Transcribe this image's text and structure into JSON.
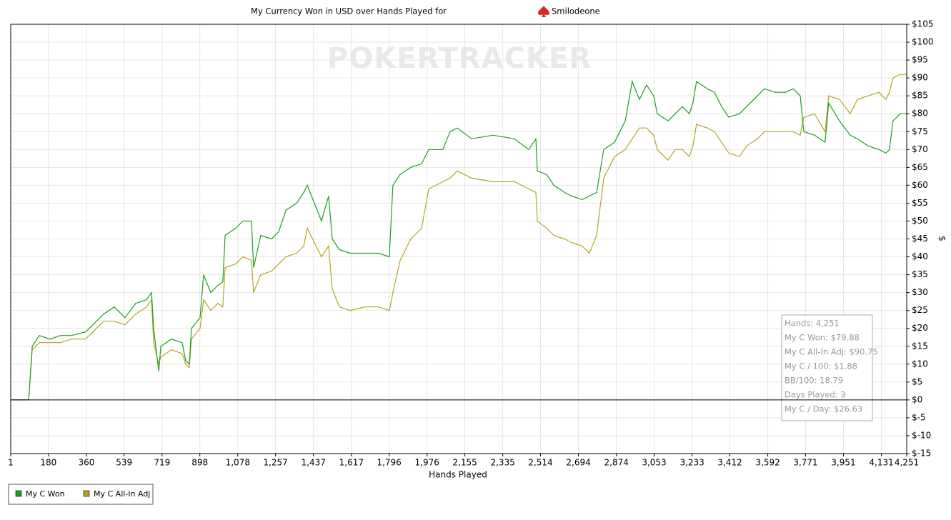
{
  "chart_data": {
    "type": "line",
    "title": "My Currency Won in USD over Hands Played for",
    "player": "Smilodeone",
    "watermark": "POKERTRACKER",
    "xlabel": "Hands Played",
    "ylabel": "$",
    "grid": true,
    "reference_line": 0,
    "xlim": [
      1,
      4251
    ],
    "ylim": [
      -15,
      105
    ],
    "xticks": [
      1,
      180,
      360,
      539,
      719,
      898,
      {
        "value": 1078,
        "label": "1,078"
      },
      {
        "value": 1257,
        "label": "1,257"
      },
      {
        "value": 1437,
        "label": "1,437"
      },
      {
        "value": 1617,
        "label": "1,617"
      },
      {
        "value": 1796,
        "label": "1,796"
      },
      {
        "value": 1976,
        "label": "1,976"
      },
      {
        "value": 2155,
        "label": "2,155"
      },
      {
        "value": 2335,
        "label": "2,335"
      },
      {
        "value": 2514,
        "label": "2,514"
      },
      {
        "value": 2694,
        "label": "2,694"
      },
      {
        "value": 2874,
        "label": "2,874"
      },
      {
        "value": 3053,
        "label": "3,053"
      },
      {
        "value": 3233,
        "label": "3,233"
      },
      {
        "value": 3412,
        "label": "3,412"
      },
      {
        "value": 3592,
        "label": "3,592"
      },
      {
        "value": 3771,
        "label": "3,771"
      },
      {
        "value": 3951,
        "label": "3,951"
      },
      {
        "value": 4131,
        "label": "4,131"
      },
      {
        "value": 4251,
        "label": "4,251"
      }
    ],
    "yticks": [
      {
        "value": -15,
        "label": "$-15"
      },
      {
        "value": -10,
        "label": "$-10"
      },
      {
        "value": -5,
        "label": "$-5"
      },
      {
        "value": 0,
        "label": "$0"
      },
      {
        "value": 5,
        "label": "$5"
      },
      {
        "value": 10,
        "label": "$10"
      },
      {
        "value": 15,
        "label": "$15"
      },
      {
        "value": 20,
        "label": "$20"
      },
      {
        "value": 25,
        "label": "$25"
      },
      {
        "value": 30,
        "label": "$30"
      },
      {
        "value": 35,
        "label": "$35"
      },
      {
        "value": 40,
        "label": "$40"
      },
      {
        "value": 45,
        "label": "$45"
      },
      {
        "value": 50,
        "label": "$50"
      },
      {
        "value": 55,
        "label": "$55"
      },
      {
        "value": 60,
        "label": "$60"
      },
      {
        "value": 65,
        "label": "$65"
      },
      {
        "value": 70,
        "label": "$70"
      },
      {
        "value": 75,
        "label": "$75"
      },
      {
        "value": 80,
        "label": "$80"
      },
      {
        "value": 85,
        "label": "$85"
      },
      {
        "value": 90,
        "label": "$90"
      },
      {
        "value": 95,
        "label": "$95"
      },
      {
        "value": 100,
        "label": "$100"
      },
      {
        "value": 105,
        "label": "$105"
      }
    ],
    "x": [
      1,
      86,
      103,
      137,
      187,
      238,
      289,
      357,
      408,
      442,
      492,
      543,
      594,
      645,
      669,
      679,
      703,
      713,
      764,
      814,
      831,
      848,
      858,
      899,
      916,
      950,
      984,
      1007,
      1018,
      1068,
      1102,
      1143,
      1153,
      1187,
      1238,
      1272,
      1306,
      1357,
      1391,
      1408,
      1441,
      1475,
      1509,
      1526,
      1560,
      1611,
      1679,
      1746,
      1797,
      1814,
      1848,
      1899,
      1950,
      1984,
      2018,
      2051,
      2085,
      2119,
      2187,
      2289,
      2390,
      2458,
      2492,
      2499,
      2543,
      2577,
      2628,
      2661,
      2712,
      2746,
      2780,
      2814,
      2865,
      2916,
      2949,
      2983,
      3017,
      3051,
      3068,
      3119,
      3153,
      3187,
      3220,
      3237,
      3254,
      3305,
      3339,
      3373,
      3407,
      3458,
      3492,
      3543,
      3576,
      3627,
      3678,
      3712,
      3746,
      3763,
      3814,
      3864,
      3881,
      3932,
      3983,
      4017,
      4068,
      4119,
      4152,
      4169,
      4186,
      4220,
      4251
    ],
    "series": [
      {
        "name": "My C Won",
        "color": "#1e9e1e",
        "values": [
          0,
          0,
          15,
          18,
          17,
          18,
          18,
          19,
          22,
          24,
          26,
          23,
          27,
          28,
          30,
          20,
          8,
          15,
          17,
          16,
          11,
          10,
          20,
          23,
          35,
          30,
          32,
          33,
          46,
          48,
          50,
          50,
          37,
          46,
          45,
          47,
          53,
          55,
          58,
          60,
          55,
          50,
          57,
          45,
          42,
          41,
          41,
          41,
          40,
          60,
          63,
          65,
          66,
          70,
          70,
          70,
          75,
          76,
          73,
          74,
          73,
          70,
          73,
          64,
          63,
          60,
          58,
          57,
          56,
          57,
          58,
          70,
          72,
          78,
          89,
          84,
          88,
          85,
          80,
          78,
          80,
          82,
          80,
          83,
          89,
          87,
          86,
          82,
          79,
          80,
          82,
          85,
          87,
          86,
          86,
          87,
          85,
          75,
          74,
          72,
          83,
          78,
          74,
          73,
          71,
          70,
          69,
          70,
          78,
          80,
          80
        ]
      },
      {
        "name": "My C All-In Adj",
        "color": "#b3a524",
        "values": [
          0,
          0,
          14,
          16,
          16,
          16,
          17,
          17,
          20,
          22,
          22,
          21,
          24,
          26,
          28,
          16,
          10,
          12,
          14,
          13,
          10,
          9,
          17,
          20,
          28,
          25,
          27,
          26,
          37,
          38,
          40,
          39,
          30,
          35,
          36,
          38,
          40,
          41,
          43,
          48,
          44,
          40,
          43,
          31,
          26,
          25,
          26,
          26,
          25,
          30,
          39,
          45,
          48,
          59,
          60,
          61,
          62,
          64,
          62,
          61,
          61,
          59,
          58,
          50,
          48,
          46,
          45,
          44,
          43,
          41,
          46,
          62,
          68,
          70,
          73,
          76,
          76,
          74,
          70,
          67,
          70,
          70,
          68,
          71,
          77,
          76,
          75,
          72,
          69,
          68,
          71,
          73,
          75,
          75,
          75,
          75,
          74,
          79,
          80,
          75,
          85,
          84,
          80,
          84,
          85,
          86,
          84,
          86,
          90,
          91,
          91
        ]
      }
    ],
    "stats": [
      "Hands: 4,251",
      "My C Won: $79.88",
      "My C All-In Adj: $90.75",
      "My C / 100: $1.88",
      "BB/100: 18.79",
      "Days Played: 3",
      "My C / Day: $26.63"
    ]
  }
}
